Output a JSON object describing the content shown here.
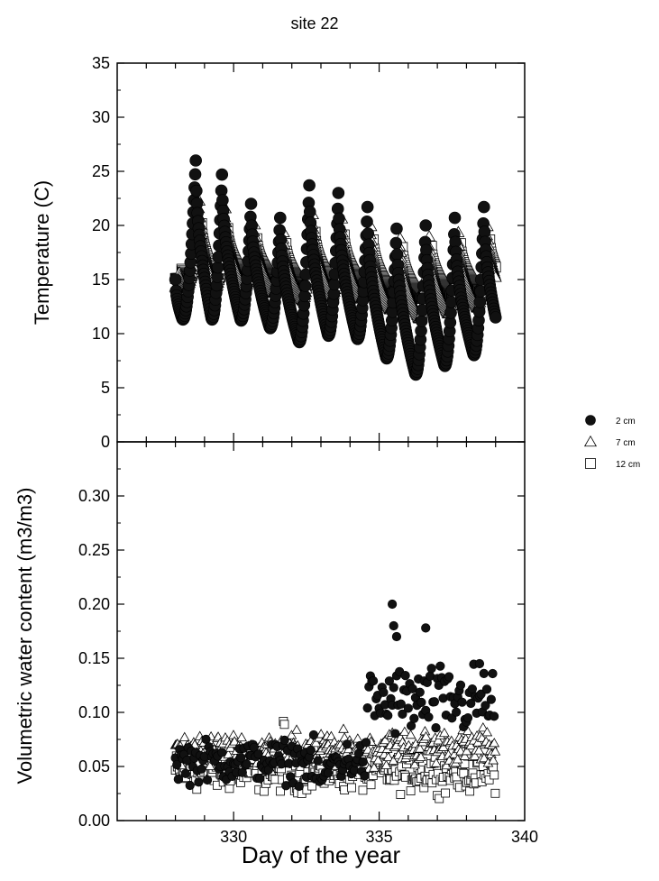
{
  "figure_title": "site 22",
  "chart_data": [
    {
      "type": "scatter",
      "panel": "top",
      "ylabel": "Temperature (C)",
      "xlabel": "",
      "xlim": [
        326,
        340
      ],
      "ylim": [
        0,
        35
      ],
      "yticks": [
        0,
        5,
        10,
        15,
        20,
        25,
        30,
        35
      ],
      "ytick_labels": [
        "0",
        "5",
        "10",
        "15",
        "20",
        "25",
        "30",
        "35"
      ],
      "daily_peaks": [
        {
          "x": 328.7,
          "y": 26.0
        },
        {
          "x": 329.6,
          "y": 24.7
        },
        {
          "x": 330.6,
          "y": 22.0
        },
        {
          "x": 331.6,
          "y": 20.7
        },
        {
          "x": 332.6,
          "y": 23.7
        },
        {
          "x": 333.6,
          "y": 23.0
        },
        {
          "x": 334.6,
          "y": 21.7
        },
        {
          "x": 335.6,
          "y": 19.7
        },
        {
          "x": 336.6,
          "y": 20.0
        },
        {
          "x": 337.6,
          "y": 20.7
        },
        {
          "x": 338.6,
          "y": 21.7
        }
      ],
      "daily_minima": [
        {
          "x": 328.25,
          "y": 11.3
        },
        {
          "x": 329.25,
          "y": 11.3
        },
        {
          "x": 330.25,
          "y": 11.2
        },
        {
          "x": 331.25,
          "y": 10.5
        },
        {
          "x": 332.25,
          "y": 9.2
        },
        {
          "x": 333.25,
          "y": 9.8
        },
        {
          "x": 334.25,
          "y": 9.5
        },
        {
          "x": 335.25,
          "y": 7.7
        },
        {
          "x": 336.25,
          "y": 6.2
        },
        {
          "x": 337.25,
          "y": 7.0
        },
        {
          "x": 338.25,
          "y": 8.0
        }
      ],
      "x_range": [
        328.0,
        339.0
      ],
      "series": [
        {
          "name": "2 cm",
          "marker": "filled-circle",
          "amplitude_scale": 1.0,
          "lag_days": 0.0
        },
        {
          "name": "7 cm",
          "marker": "open-triangle",
          "amplitude_scale": 0.55,
          "lag_days": 0.12
        },
        {
          "name": "12 cm",
          "marker": "open-square",
          "amplitude_scale": 0.35,
          "lag_days": 0.2
        }
      ]
    },
    {
      "type": "scatter",
      "panel": "bottom",
      "ylabel": "Volumetric water content (m3/m3)",
      "xlabel": "Day of the year",
      "xlim": [
        326,
        340
      ],
      "ylim": [
        0.0,
        0.35
      ],
      "xticks": [
        330,
        335,
        340
      ],
      "xtick_labels": [
        "330",
        "335",
        "340"
      ],
      "yticks": [
        0.0,
        0.05,
        0.1,
        0.15,
        0.2,
        0.25,
        0.3
      ],
      "ytick_labels": [
        "0.00",
        "0.05",
        "0.10",
        "0.15",
        "0.20",
        "0.25",
        "0.30"
      ],
      "x_range": [
        328.0,
        339.0
      ],
      "series": [
        {
          "name": "2 cm",
          "marker": "filled-circle",
          "base_before_335": 0.055,
          "base_after_335": 0.11,
          "spread": 0.02,
          "max": 0.2
        },
        {
          "name": "7 cm",
          "marker": "open-triangle",
          "base": 0.065,
          "spread": 0.012,
          "max": 0.09
        },
        {
          "name": "12 cm",
          "marker": "open-square",
          "base": 0.045,
          "spread": 0.013,
          "max": 0.118
        }
      ]
    }
  ],
  "legend": {
    "placement": "right",
    "items": [
      {
        "label": "2 cm",
        "marker": "filled-circle"
      },
      {
        "label": "7 cm",
        "marker": "open-triangle"
      },
      {
        "label": "12 cm",
        "marker": "open-square"
      }
    ]
  }
}
